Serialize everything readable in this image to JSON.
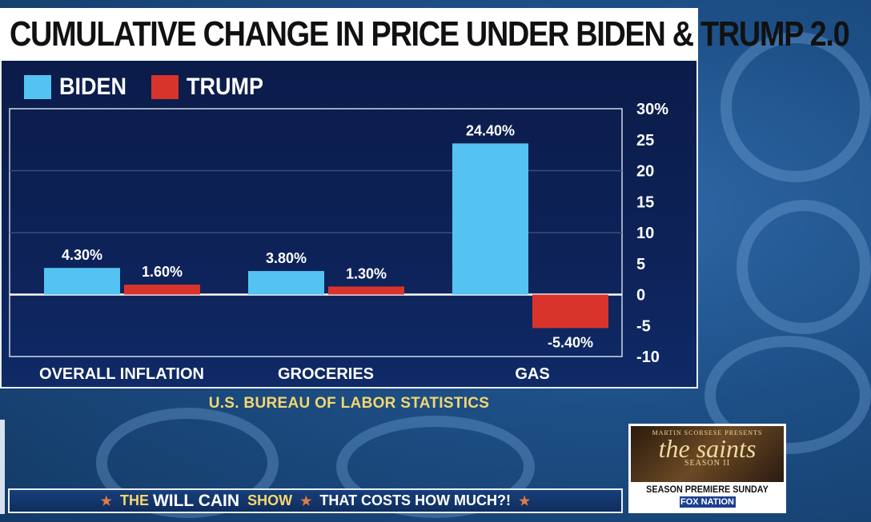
{
  "title": "CUMULATIVE CHANGE IN PRICE UNDER BIDEN & TRUMP 2.0",
  "colors": {
    "biden": "#55c3f2",
    "trump": "#d9342b",
    "accent": "#f5d76e"
  },
  "chart_data": {
    "type": "bar",
    "title": "CUMULATIVE CHANGE IN PRICE UNDER BIDEN & TRUMP 2.0",
    "categories": [
      "OVERALL INFLATION",
      "GROCERIES",
      "GAS"
    ],
    "series": [
      {
        "name": "BIDEN",
        "values": [
          4.3,
          3.8,
          24.4
        ],
        "labels": [
          "4.30%",
          "3.80%",
          "24.40%"
        ]
      },
      {
        "name": "TRUMP",
        "values": [
          1.6,
          1.3,
          -5.4
        ],
        "labels": [
          "1.60%",
          "1.30%",
          "-5.40%"
        ]
      }
    ],
    "ylim": [
      -10,
      30
    ],
    "yticks": [
      30,
      25,
      20,
      15,
      10,
      5,
      0,
      -5,
      -10
    ],
    "ytick_labels": [
      "30%",
      "25",
      "20",
      "15",
      "10",
      "5",
      "0",
      "-5",
      "-10"
    ],
    "y_axis_side": "right",
    "gridlines": [
      10,
      20
    ],
    "legend": "top-left",
    "source": "U.S. BUREAU OF LABOR STATISTICS"
  },
  "promo": {
    "presenter": "MARTIN SCORSESE PRESENTS",
    "show": "the saints",
    "season": "SEASON II",
    "premiere": "SEASON PREMIERE SUNDAY",
    "network": "FOX NATION"
  },
  "ticker": {
    "show_prefix": "THE",
    "show_name": "WILL CAIN",
    "show_suffix": "SHOW",
    "segment": "THAT COSTS HOW MUCH?!"
  }
}
